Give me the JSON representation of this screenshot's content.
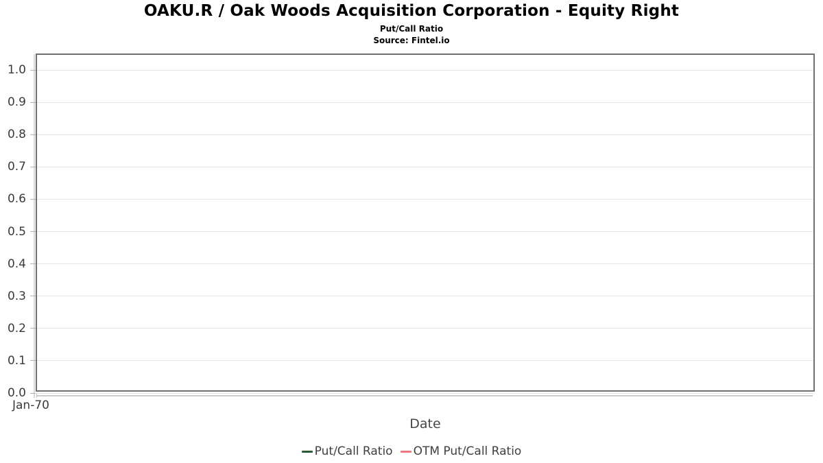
{
  "header": {
    "title": "OAKU.R / Oak Woods Acquisition Corporation - Equity Right",
    "subtitle": "Put/Call Ratio",
    "source": "Source: Fintel.io"
  },
  "chart_data": {
    "type": "line",
    "title": "OAKU.R / Oak Woods Acquisition Corporation - Equity Right",
    "subtitle": "Put/Call Ratio",
    "source": "Source: Fintel.io",
    "xlabel": "Date",
    "ylabel": "",
    "x_tick_labels": [
      "Jan-70"
    ],
    "y_ticks": [
      "0.0",
      "0.1",
      "0.2",
      "0.3",
      "0.4",
      "0.5",
      "0.6",
      "0.7",
      "0.8",
      "0.9",
      "1.0"
    ],
    "ylim": [
      0,
      1.047
    ],
    "grid": "horizontal-only",
    "legend_position": "bottom-center",
    "plot_border_color": "#6f6f6f",
    "gridline_color": "#e6e6ea",
    "series": [
      {
        "name": "Put/Call Ratio",
        "color": "#2a5c34",
        "x": [],
        "values": []
      },
      {
        "name": "OTM Put/Call Ratio",
        "color": "#f3757d",
        "x": [],
        "values": []
      }
    ]
  }
}
